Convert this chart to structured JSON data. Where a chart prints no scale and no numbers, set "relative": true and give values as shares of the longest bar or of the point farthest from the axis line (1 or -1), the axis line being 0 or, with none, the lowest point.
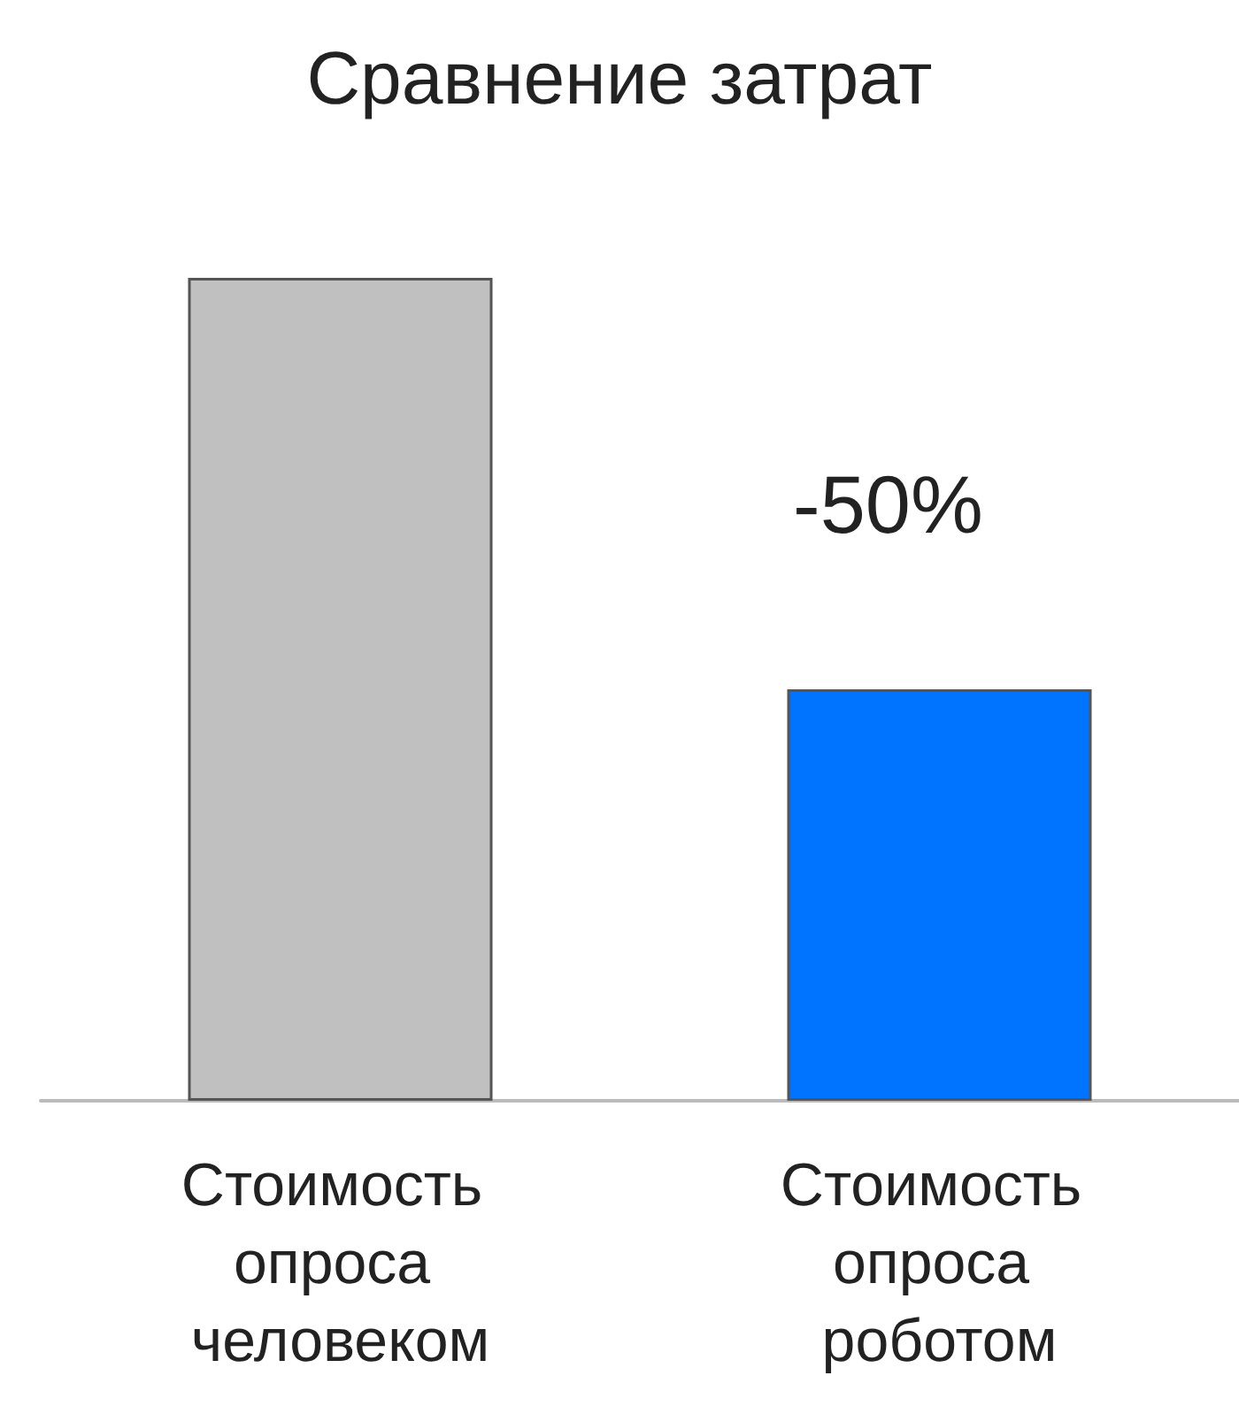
{
  "chart_data": {
    "type": "bar",
    "title": "Сравнение затрат",
    "categories": [
      "Стоимость опроса человеком",
      "Стоимость опроса роботом"
    ],
    "values": [
      1,
      0.5
    ],
    "colors": [
      "#c0c0c0",
      "#0073ff"
    ],
    "relative": true,
    "annotations": [
      "-50%"
    ]
  }
}
